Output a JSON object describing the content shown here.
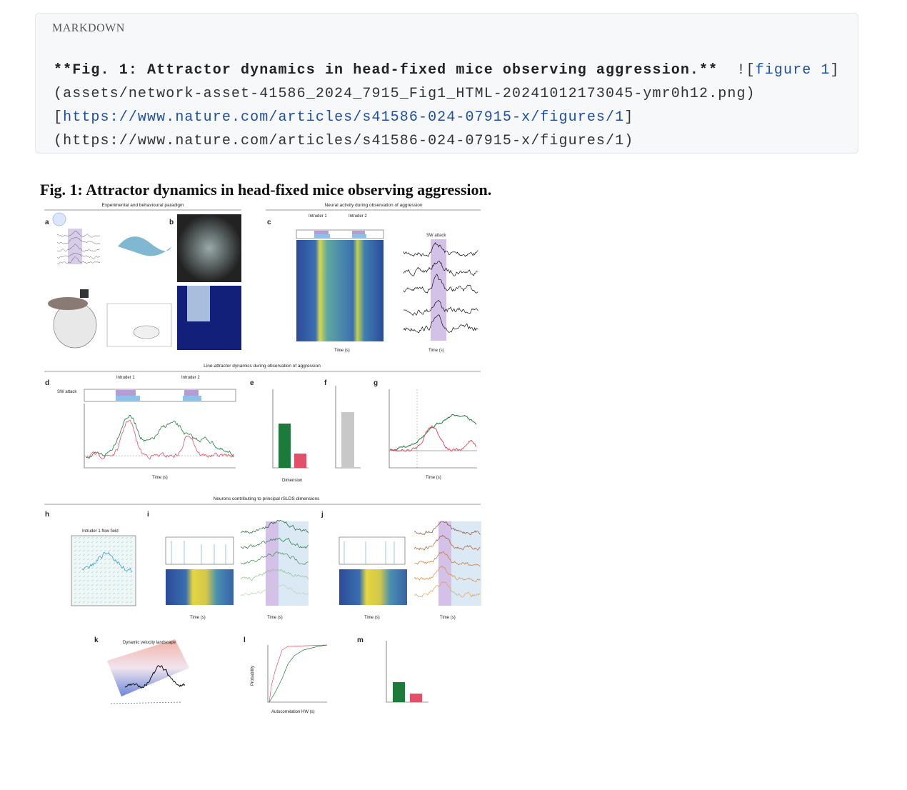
{
  "code_block": {
    "label": "MARKDOWN",
    "line_1": {
      "bold": "**Fig. 1: Attractor dynamics in head-fixed mice observing aggression.**",
      "link_open": "![",
      "link_text": "figure 1",
      "link_close": "]"
    },
    "line_2": "(assets/network-asset-41586_2024_7915_Fig1_HTML-20241012173045-ymr0h12.png)",
    "line_3": {
      "open": "[",
      "url": "https://www.nature.com/articles/s41586-024-07915-x/figures/1",
      "close": "]"
    },
    "line_4": "(https://www.nature.com/articles/s41586-024-07915-x/figures/1)"
  },
  "figure": {
    "caption": "Fig. 1: Attractor dynamics in head-fixed mice observing aggression.",
    "sections": [
      "Experimental and behavioural paradigm",
      "Neural activity during observation of aggression",
      "Line-attractor dynamics during observation of aggression",
      "Neurons contributing to principal rSLDS dimensions"
    ],
    "panels": [
      "a",
      "b",
      "c",
      "d",
      "e",
      "f",
      "g",
      "h",
      "i",
      "j",
      "k",
      "l",
      "m"
    ],
    "labels": {
      "k_title": "Dynamic velocity landscape",
      "intruder_1": "Intruder 1",
      "intruder_2": "Intruder 2",
      "time": "Time (s)",
      "sw_attack": "SW attack",
      "dimension": "Dimension",
      "flow_field": "Intruder 1 flow field",
      "probability": "Probability",
      "autocorrelation": "Autocorrelation HW (s)"
    }
  }
}
